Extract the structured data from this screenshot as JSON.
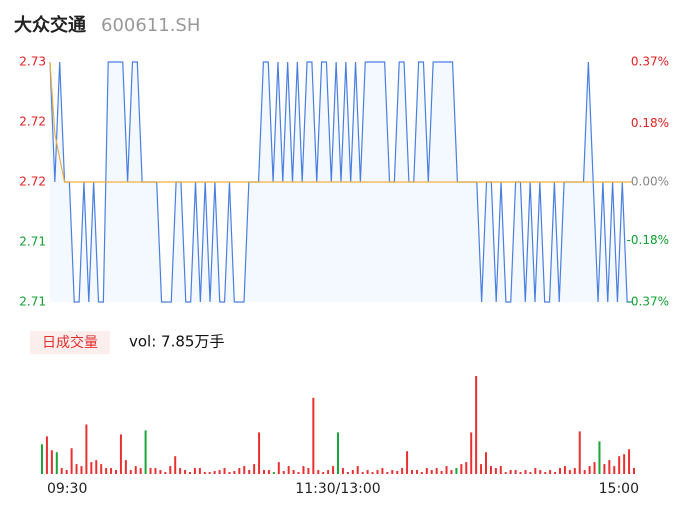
{
  "header": {
    "name": "大众交通",
    "code": "600611.SH"
  },
  "chart_data": [
    {
      "type": "line",
      "values": [
        2.73,
        2.72,
        2.73,
        2.72,
        2.72,
        2.71,
        2.71,
        2.72,
        2.71,
        2.72,
        2.71,
        2.71,
        2.73,
        2.73,
        2.73,
        2.73,
        2.72,
        2.73,
        2.73,
        2.72,
        2.72,
        2.72,
        2.72,
        2.71,
        2.71,
        2.71,
        2.72,
        2.72,
        2.71,
        2.71,
        2.72,
        2.71,
        2.72,
        2.71,
        2.72,
        2.71,
        2.71,
        2.72,
        2.71,
        2.71,
        2.71,
        2.72,
        2.72,
        2.72,
        2.73,
        2.73,
        2.72,
        2.73,
        2.72,
        2.73,
        2.72,
        2.73,
        2.72,
        2.73,
        2.73,
        2.72,
        2.73,
        2.73,
        2.72,
        2.73,
        2.72,
        2.73,
        2.72,
        2.73,
        2.72,
        2.73,
        2.73,
        2.73,
        2.73,
        2.73,
        2.72,
        2.72,
        2.73,
        2.73,
        2.72,
        2.72,
        2.73,
        2.73,
        2.72,
        2.73,
        2.73,
        2.73,
        2.73,
        2.73,
        2.72,
        2.72,
        2.72,
        2.72,
        2.72,
        2.71,
        2.72,
        2.72,
        2.71,
        2.72,
        2.71,
        2.71,
        2.72,
        2.72,
        2.71,
        2.72,
        2.71,
        2.72,
        2.71,
        2.71,
        2.72,
        2.71,
        2.72,
        2.72,
        2.72,
        2.72,
        2.72,
        2.73,
        2.72,
        2.71,
        2.72,
        2.71,
        2.72,
        2.71,
        2.72,
        2.71,
        2.71
      ],
      "avg": [
        2.73,
        2.724,
        2.722,
        2.72,
        2.72,
        2.72,
        2.72,
        2.72,
        2.72,
        2.72,
        2.72,
        2.72,
        2.72,
        2.72,
        2.72,
        2.72,
        2.72,
        2.72,
        2.72,
        2.72,
        2.72,
        2.72,
        2.72,
        2.72,
        2.72,
        2.72,
        2.72,
        2.72,
        2.72,
        2.72,
        2.72,
        2.72,
        2.72,
        2.72,
        2.72,
        2.72,
        2.72,
        2.72,
        2.72,
        2.72,
        2.72,
        2.72,
        2.72,
        2.72,
        2.72,
        2.72,
        2.72,
        2.72,
        2.72,
        2.72,
        2.72,
        2.72,
        2.72,
        2.72,
        2.72,
        2.72,
        2.72,
        2.72,
        2.72,
        2.72,
        2.72,
        2.72,
        2.72,
        2.72,
        2.72,
        2.72,
        2.72,
        2.72,
        2.72,
        2.72,
        2.72,
        2.72,
        2.72,
        2.72,
        2.72,
        2.72,
        2.72,
        2.72,
        2.72,
        2.72,
        2.72,
        2.72,
        2.72,
        2.72,
        2.72,
        2.72,
        2.72,
        2.72,
        2.72,
        2.72,
        2.72,
        2.72,
        2.72,
        2.72,
        2.72,
        2.72,
        2.72,
        2.72,
        2.72,
        2.72,
        2.72,
        2.72,
        2.72,
        2.72,
        2.72,
        2.72,
        2.72,
        2.72,
        2.72,
        2.72,
        2.72,
        2.72,
        2.72,
        2.72,
        2.72,
        2.72,
        2.72,
        2.72,
        2.72,
        2.72,
        2.72
      ],
      "color": "#4a7fe0",
      "avg_color": "#f0b040",
      "fill": "#f4f8ff",
      "up_color": "#e02020",
      "down_color": "#10a030",
      "flat_color": "#888888",
      "xlim": [
        0,
        120
      ],
      "ylim": [
        2.71,
        2.73
      ],
      "yticks": [
        2.71,
        {
          "value": 2.715,
          "label": "2.71"
        },
        2.72,
        {
          "value": 2.725,
          "label": "2.72"
        },
        2.73
      ],
      "y2lim": [
        -0.37,
        0.37
      ],
      "y2ticks": [
        {
          "value": -0.37,
          "label": "-0.37%"
        },
        {
          "value": -0.18,
          "label": "-0.18%"
        },
        {
          "value": 0,
          "label": "0.00%"
        },
        {
          "value": 0.18,
          "label": "0.18%"
        },
        {
          "value": 0.37,
          "label": "0.37%"
        }
      ]
    },
    {
      "type": "bar",
      "badge": "日成交量",
      "volume_label": "vol: 7.85万手",
      "values": [
        30,
        38,
        24,
        22,
        6,
        4,
        26,
        10,
        8,
        50,
        12,
        14,
        10,
        6,
        6,
        4,
        40,
        14,
        4,
        8,
        6,
        44,
        6,
        6,
        4,
        2,
        8,
        18,
        6,
        4,
        2,
        6,
        6,
        2,
        2,
        3,
        4,
        6,
        2,
        3,
        6,
        8,
        4,
        10,
        42,
        4,
        4,
        2,
        12,
        3,
        8,
        4,
        2,
        8,
        6,
        77,
        4,
        2,
        4,
        8,
        42,
        6,
        2,
        4,
        8,
        2,
        4,
        2,
        4,
        6,
        2,
        4,
        3,
        6,
        23,
        4,
        4,
        2,
        6,
        4,
        6,
        3,
        8,
        4,
        6,
        10,
        12,
        42,
        99,
        10,
        22,
        8,
        6,
        8,
        2,
        4,
        4,
        2,
        4,
        2,
        6,
        4,
        2,
        4,
        2,
        6,
        8,
        4,
        6,
        43,
        4,
        8,
        12,
        33,
        10,
        14,
        8,
        18,
        20,
        25,
        6
      ],
      "colors": [
        "#1aa53a",
        "#e93030",
        "#e93030",
        "#1aa53a",
        "#e93030",
        "#e93030",
        "#e93030",
        "#e93030",
        "#e93030",
        "#e93030",
        "#e93030",
        "#e93030",
        "#e93030",
        "#e93030",
        "#e93030",
        "#e93030",
        "#e93030",
        "#e93030",
        "#e93030",
        "#e93030",
        "#e93030",
        "#1aa53a",
        "#e93030",
        "#e93030",
        "#e93030",
        "#e93030",
        "#e93030",
        "#e93030",
        "#e93030",
        "#e93030",
        "#e93030",
        "#e93030",
        "#e93030",
        "#e93030",
        "#e93030",
        "#e93030",
        "#e93030",
        "#e93030",
        "#e93030",
        "#e93030",
        "#e93030",
        "#e93030",
        "#e93030",
        "#e93030",
        "#e93030",
        "#e93030",
        "#e93030",
        "#1aa53a",
        "#e93030",
        "#e93030",
        "#e93030",
        "#e93030",
        "#e93030",
        "#e93030",
        "#e93030",
        "#e93030",
        "#e93030",
        "#e93030",
        "#e93030",
        "#e93030",
        "#1aa53a",
        "#e93030",
        "#e93030",
        "#e93030",
        "#e93030",
        "#e93030",
        "#e93030",
        "#e93030",
        "#e93030",
        "#e93030",
        "#e93030",
        "#e93030",
        "#e93030",
        "#e93030",
        "#e93030",
        "#e93030",
        "#e93030",
        "#e93030",
        "#e93030",
        "#e93030",
        "#e93030",
        "#e93030",
        "#e93030",
        "#e93030",
        "#1aa53a",
        "#e93030",
        "#e93030",
        "#e93030",
        "#e93030",
        "#e93030",
        "#e93030",
        "#e93030",
        "#e93030",
        "#e93030",
        "#e93030",
        "#e93030",
        "#e93030",
        "#e93030",
        "#e93030",
        "#e93030",
        "#e93030",
        "#e93030",
        "#e93030",
        "#e93030",
        "#e93030",
        "#e93030",
        "#e93030",
        "#e93030",
        "#e93030",
        "#e93030",
        "#e93030",
        "#e93030",
        "#e93030",
        "#1aa53a",
        "#e93030",
        "#e93030",
        "#e93030",
        "#e93030",
        "#e93030",
        "#e93030",
        "#e93030"
      ],
      "ylim": [
        0,
        100
      ],
      "xlim": [
        0,
        120
      ],
      "xticks": [
        {
          "value": 0,
          "label": "09:30"
        },
        {
          "value": 60,
          "label": "11:30/13:00"
        },
        {
          "value": 120,
          "label": "15:00"
        }
      ]
    }
  ]
}
